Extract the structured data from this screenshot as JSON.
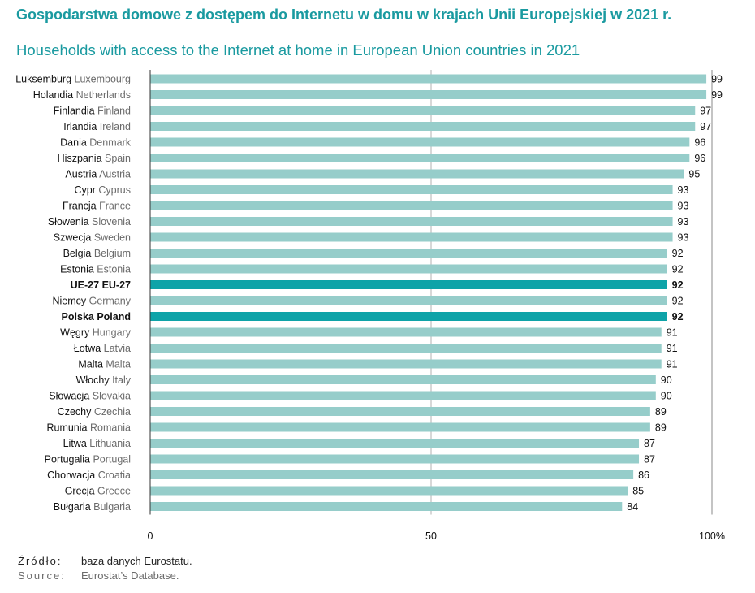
{
  "title_pl": "Gospodarstwa domowe z dostępem do Internetu w domu w krajach Unii Europejskiej w 2021 r.",
  "title_en": "Households with access to the Internet at home in European Union countries in 2021",
  "source": {
    "pl_key": "Źródło:",
    "pl_value": "baza danych Eurostatu.",
    "en_key": "Source:",
    "en_value": "Eurostat’s Database."
  },
  "colors": {
    "bar": "#96cdca",
    "highlight": "#0ea3a8",
    "title": "#1a9aa0",
    "label_pl": "#111111",
    "label_en": "#6b6b6b",
    "axis": "#555555",
    "grid": "#b0b0b0"
  },
  "chart_data": {
    "type": "bar",
    "orientation": "horizontal",
    "categories_pl": [
      "Luksemburg",
      "Holandia",
      "Finlandia",
      "Irlandia",
      "Dania",
      "Hiszpania",
      "Austria",
      "Cypr",
      "Francja",
      "Słowenia",
      "Szwecja",
      "Belgia",
      "Estonia",
      "UE-27",
      "Niemcy",
      "Polska",
      "Węgry",
      "Łotwa",
      "Malta",
      "Włochy",
      "Słowacja",
      "Czechy",
      "Rumunia",
      "Litwa",
      "Portugalia",
      "Chorwacja",
      "Grecja",
      "Bułgaria"
    ],
    "categories_en": [
      "Luxembourg",
      "Netherlands",
      "Finland",
      "Ireland",
      "Denmark",
      "Spain",
      "Austria",
      "Cyprus",
      "France",
      "Slovenia",
      "Sweden",
      "Belgium",
      "Estonia",
      "EU-27",
      "Germany",
      "Poland",
      "Hungary",
      "Latvia",
      "Malta",
      "Italy",
      "Slovakia",
      "Czechia",
      "Romania",
      "Lithuania",
      "Portugal",
      "Croatia",
      "Greece",
      "Bulgaria"
    ],
    "values": [
      99,
      99,
      97,
      97,
      96,
      96,
      95,
      93,
      93,
      93,
      93,
      92,
      92,
      92,
      92,
      92,
      91,
      91,
      91,
      90,
      90,
      89,
      89,
      87,
      87,
      86,
      85,
      84
    ],
    "highlight": [
      "UE-27",
      "Polska"
    ],
    "xlim": [
      0,
      100
    ],
    "xticks": [
      "0",
      "50",
      "100%"
    ],
    "grid_x": [
      50
    ]
  }
}
